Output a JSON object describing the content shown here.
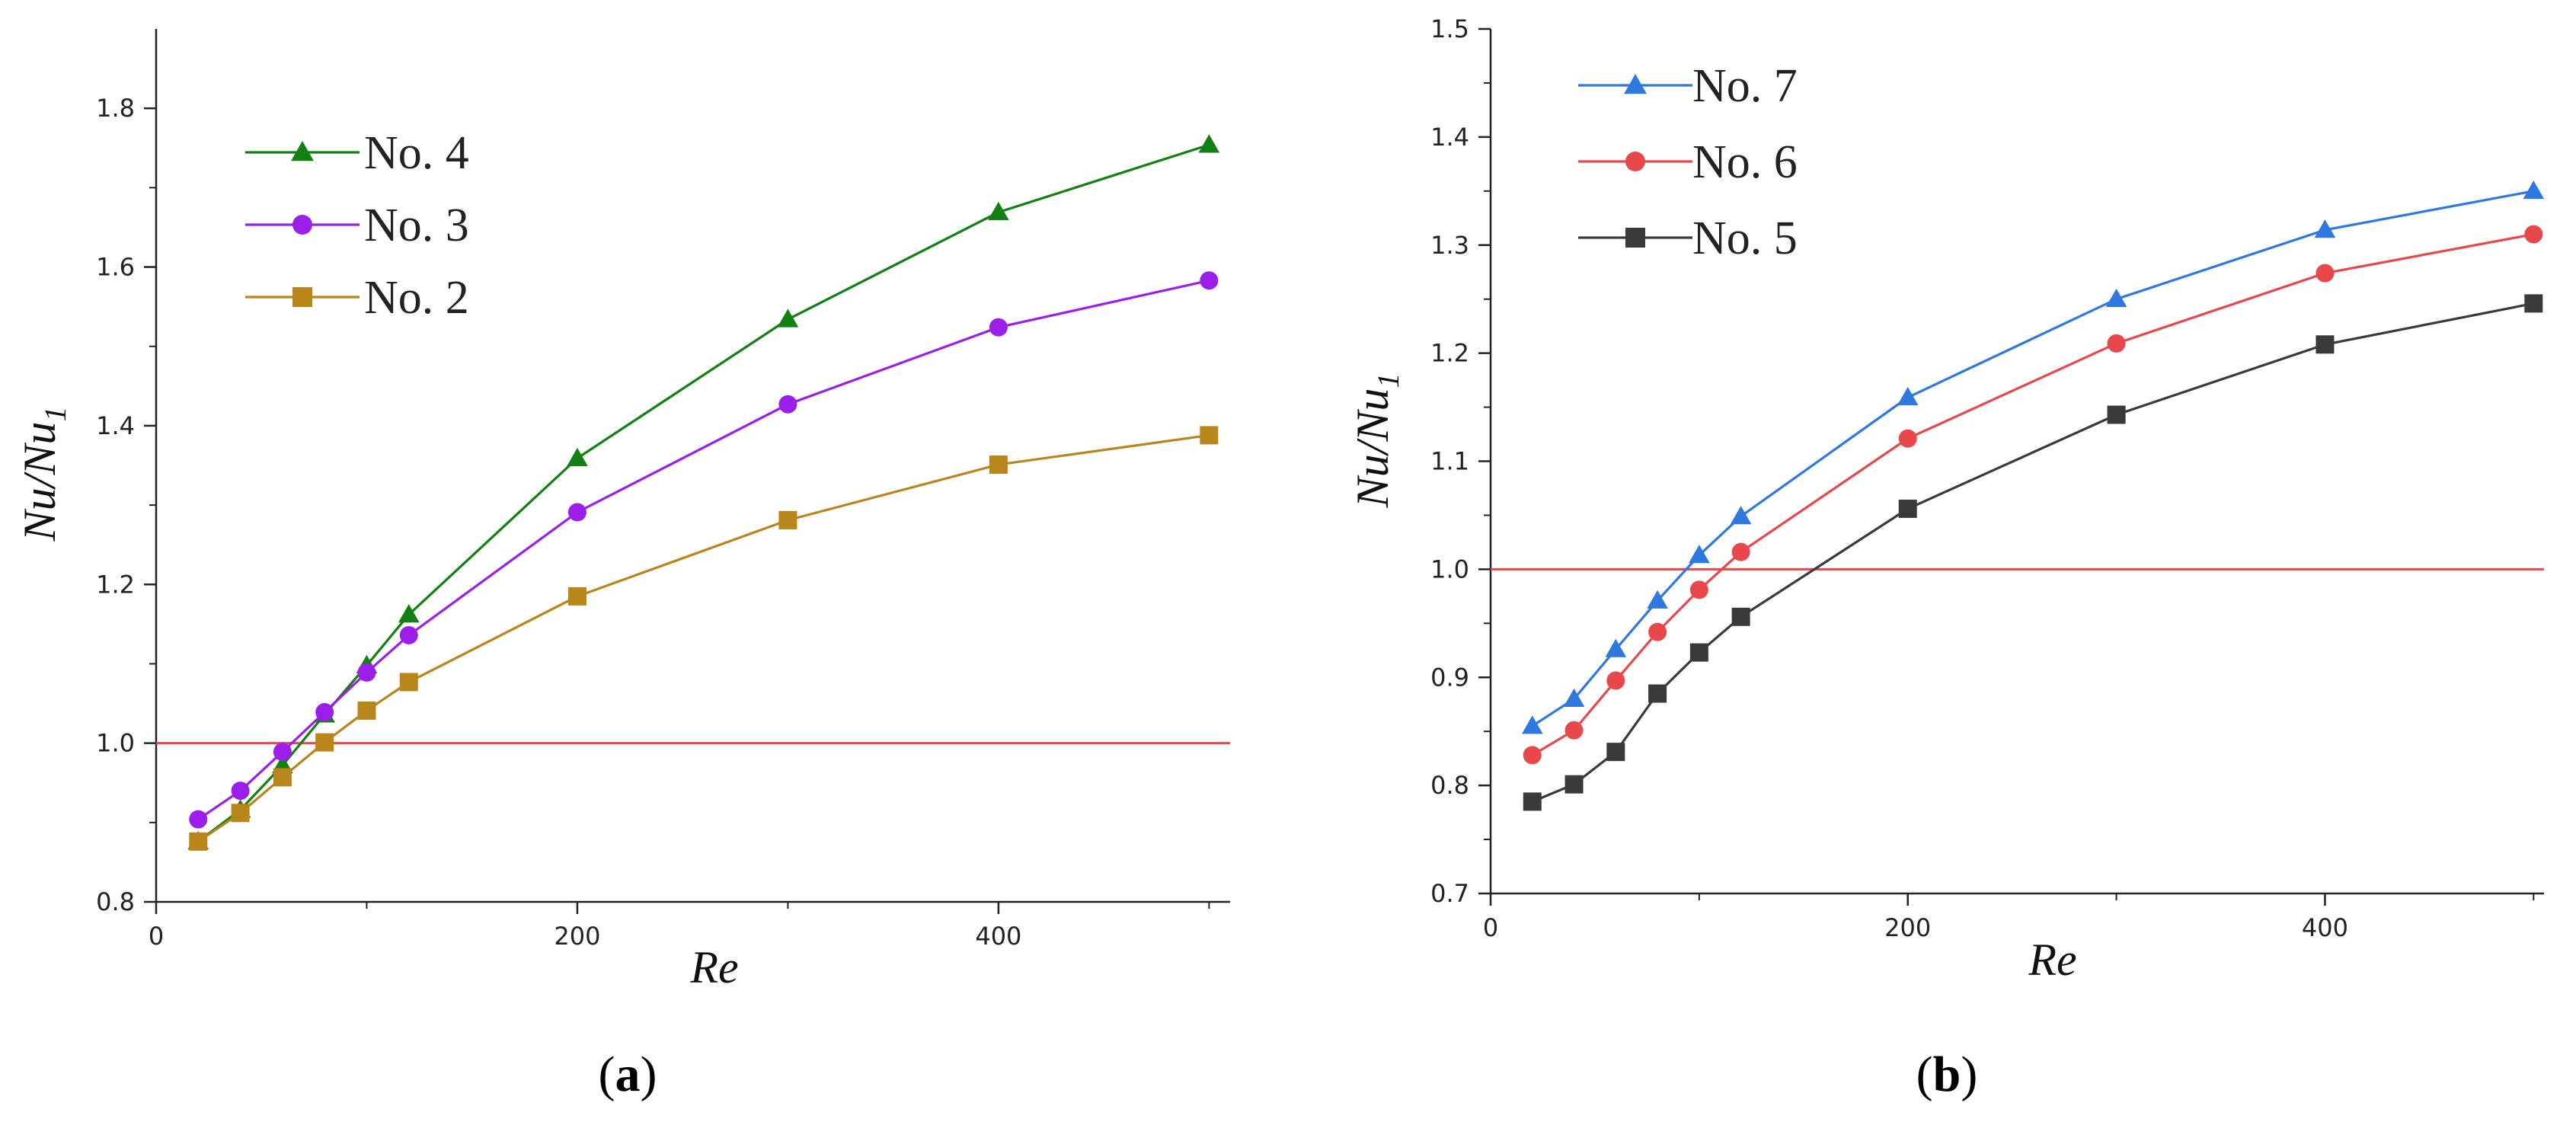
{
  "chart_data": [
    {
      "type": "line",
      "panel": "a",
      "title": "",
      "xlabel": "Re",
      "ylabel_main": "Nu/Nu",
      "ylabel_sub": "1",
      "xlim": [
        0,
        510
      ],
      "ylim": [
        0.8,
        1.9
      ],
      "xticks": [
        0,
        200,
        400
      ],
      "xtick_labels": [
        "0",
        "200",
        "400"
      ],
      "yticks": [
        0.8,
        1.0,
        1.2,
        1.4,
        1.6,
        1.8
      ],
      "ytick_labels": [
        "0.8",
        "1.0",
        "1.2",
        "1.4",
        "1.6",
        "1.8"
      ],
      "reference_line": 1.0,
      "reference_color": "#e8474c",
      "grid": false,
      "legend_position": "top-left",
      "x": [
        20,
        40,
        60,
        80,
        100,
        120,
        200,
        300,
        400,
        500
      ],
      "series": [
        {
          "name": "No. 4",
          "marker": "triangle",
          "color": "#128012",
          "values": [
            0.876,
            0.916,
            0.972,
            1.036,
            1.098,
            1.162,
            1.359,
            1.534,
            1.669,
            1.754
          ]
        },
        {
          "name": "No. 3",
          "marker": "circle",
          "color": "#9b1fe8",
          "values": [
            0.904,
            0.94,
            0.989,
            1.039,
            1.089,
            1.136,
            1.291,
            1.427,
            1.524,
            1.583
          ]
        },
        {
          "name": "No. 2",
          "marker": "square",
          "color": "#b8861b",
          "values": [
            0.876,
            0.912,
            0.957,
            1.001,
            1.041,
            1.077,
            1.185,
            1.281,
            1.351,
            1.388
          ]
        }
      ]
    },
    {
      "type": "line",
      "panel": "b",
      "title": "",
      "xlabel": "Re",
      "ylabel_main": "Nu/Nu",
      "ylabel_sub": "1",
      "xlim": [
        0,
        505
      ],
      "ylim": [
        0.7,
        1.5
      ],
      "xticks": [
        0,
        200,
        400
      ],
      "xtick_labels": [
        "0",
        "200",
        "400"
      ],
      "yticks": [
        0.7,
        0.8,
        0.9,
        1.0,
        1.1,
        1.2,
        1.3,
        1.4,
        1.5
      ],
      "ytick_labels": [
        "0.7",
        "0.8",
        "0.9",
        "1.0",
        "1.1",
        "1.2",
        "1.3",
        "1.4",
        "1.5"
      ],
      "reference_line": 1.0,
      "reference_color": "#e8474c",
      "grid": false,
      "legend_position": "top-left",
      "x": [
        20,
        40,
        60,
        80,
        100,
        120,
        200,
        300,
        400,
        500
      ],
      "series": [
        {
          "name": "No. 7",
          "marker": "triangle",
          "color": "#2f78e0",
          "values": [
            0.855,
            0.88,
            0.926,
            0.971,
            1.013,
            1.049,
            1.159,
            1.25,
            1.314,
            1.35
          ]
        },
        {
          "name": "No. 6",
          "marker": "circle",
          "color": "#e8474c",
          "values": [
            0.828,
            0.851,
            0.897,
            0.942,
            0.981,
            1.016,
            1.121,
            1.209,
            1.274,
            1.31
          ]
        },
        {
          "name": "No. 5",
          "marker": "square",
          "color": "#3a3a3a",
          "values": [
            0.785,
            0.801,
            0.831,
            0.885,
            0.923,
            0.956,
            1.056,
            1.143,
            1.208,
            1.246
          ]
        }
      ]
    }
  ],
  "panel_labels": {
    "a": "a",
    "b": "b",
    "open": "(",
    "close": ")"
  }
}
